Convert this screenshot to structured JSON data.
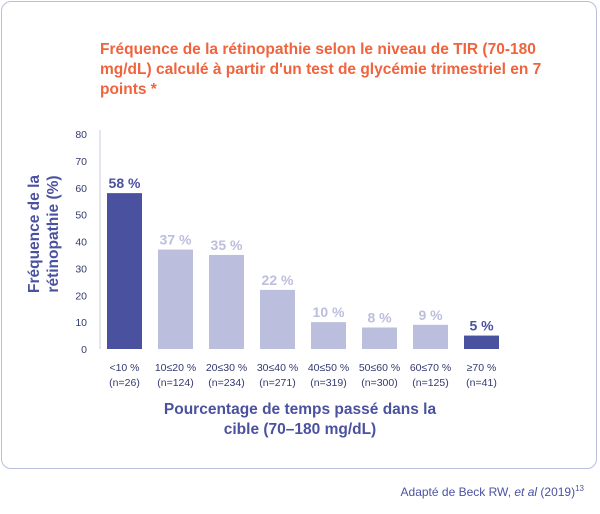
{
  "chart_data": {
    "type": "bar",
    "title": "Fréquence de la rétinopathie selon le niveau de TIR (70-180 mg/dL) calculé à partir d'un test de glycémie trimestriel en 7 points *",
    "ylabel": "Fréquence de la rétinopathie (%)",
    "xlabel": "Pourcentage de temps passé dans la cible (70–180 mg/dL)",
    "ylim": [
      0,
      80
    ],
    "yticks": [
      0,
      10,
      20,
      30,
      40,
      50,
      60,
      70,
      80
    ],
    "grid": false,
    "categories": [
      [
        "<10 %",
        "(n=26)"
      ],
      [
        "10≤20 %",
        "(n=124)"
      ],
      [
        "20≤30 %",
        "(n=234)"
      ],
      [
        "30≤40 %",
        "(n=271)"
      ],
      [
        "40≤50 %",
        "(n=319)"
      ],
      [
        "50≤60 %",
        "(n=300)"
      ],
      [
        "60≤70 %",
        "(n=125)"
      ],
      [
        "≥70 %",
        "(n=41)"
      ]
    ],
    "values": [
      58,
      37,
      35,
      22,
      10,
      8,
      9,
      5
    ],
    "data_labels": [
      "58 %",
      "37 %",
      "35 %",
      "22 %",
      "10 %",
      "8 %",
      "9 %",
      "5 %"
    ],
    "highlighted": [
      true,
      false,
      false,
      false,
      false,
      false,
      false,
      true
    ],
    "colors": {
      "highlight": "#4a52a0",
      "muted": "#bcbedd",
      "title": "#f0633d",
      "axis_text": "#333a6e"
    }
  },
  "source": {
    "prefix": "Adapté de Beck RW, ",
    "italic": "et al",
    "suffix": " (2019)",
    "ref": "13"
  }
}
